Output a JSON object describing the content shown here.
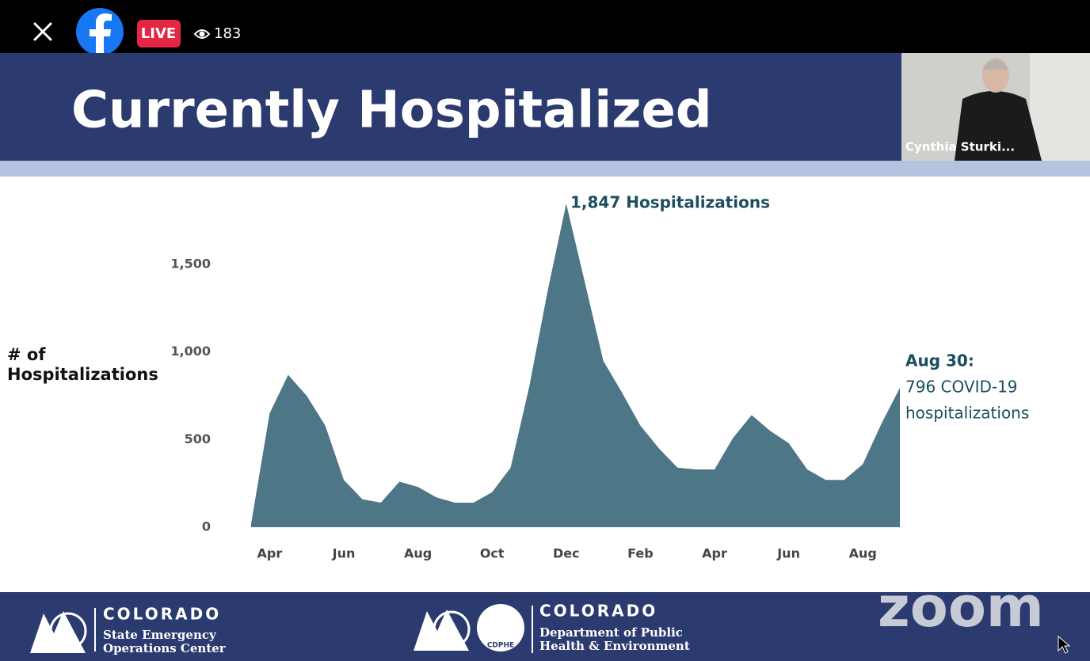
{
  "top_bar": {
    "live_badge": "LIVE",
    "viewer_count": "183"
  },
  "slide": {
    "title": "Currently Hospitalized",
    "presenter_name": "Cynthia Sturki..."
  },
  "chart_data": {
    "type": "area",
    "ylabel": "# of Hospitalizations",
    "categories": [
      null,
      "Apr",
      null,
      null,
      null,
      "Jun",
      null,
      null,
      null,
      "Aug",
      null,
      null,
      null,
      "Oct",
      null,
      null,
      null,
      "Dec",
      null,
      null,
      null,
      "Feb",
      null,
      null,
      null,
      "Apr",
      null,
      null,
      null,
      "Jun",
      null,
      null,
      null,
      "Aug",
      null,
      null
    ],
    "values": [
      20,
      650,
      870,
      750,
      580,
      270,
      160,
      140,
      260,
      230,
      170,
      140,
      140,
      200,
      340,
      800,
      1350,
      1847,
      1400,
      950,
      770,
      580,
      450,
      340,
      330,
      330,
      510,
      640,
      550,
      480,
      330,
      270,
      270,
      360,
      590,
      796
    ],
    "color": "#4d7686",
    "ylim": [
      0,
      1880
    ],
    "yticks": [
      0,
      500,
      {
        "value": 1000,
        "label": "1,000"
      },
      {
        "value": 1500,
        "label": "1,500"
      }
    ],
    "grid": false,
    "annotations": {
      "peak": "1,847 Hospitalizations",
      "latest_date": "Aug 30:",
      "latest_line1": "796 COVID-19",
      "latest_line2": "hospitalizations"
    }
  },
  "footer": {
    "left_org": "COLORADO",
    "left_line1": "State Emergency",
    "left_line2": "Operations Center",
    "badge": "CDPHE",
    "right_org": "COLORADO",
    "right_line1": "Department of Public",
    "right_line2": "Health & Environment",
    "watermark": "zoom"
  }
}
